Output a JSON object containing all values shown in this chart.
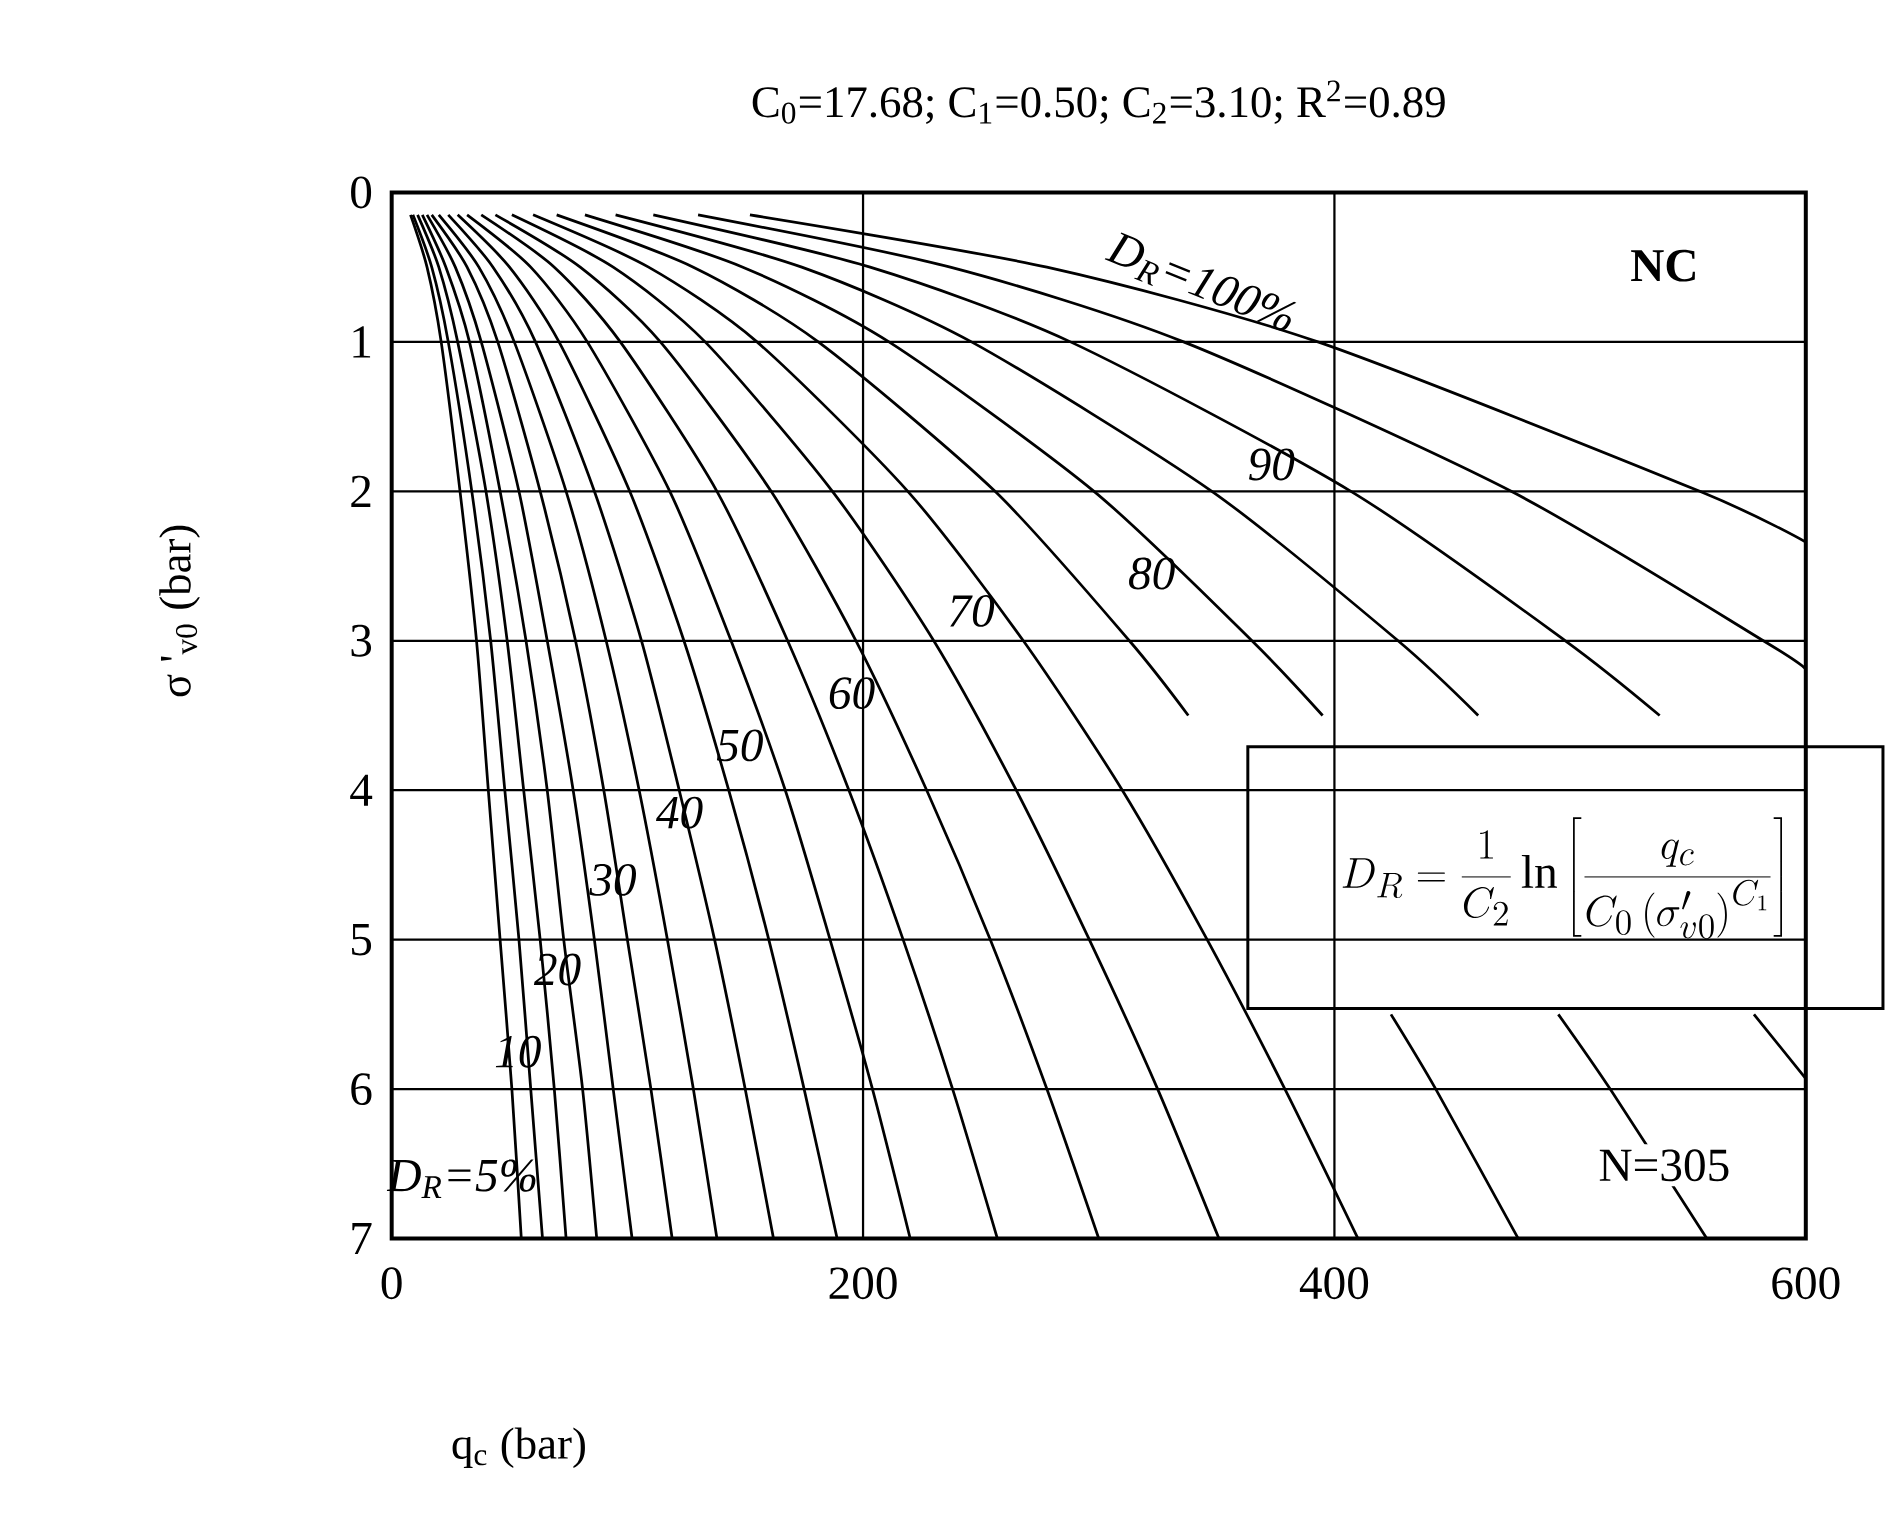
{
  "chart_data": {
    "type": "line",
    "title": "C$_{0}$=17.68;  C$_{1}$=0.50;  C$_{2}$=3.10;  R$^{2}$=0.89",
    "xlabel": "q$_{c}$ (bar)",
    "ylabel": "σ '$_{v0}$ (bar)",
    "xlim": [
      0,
      600
    ],
    "ylim": [
      7,
      0
    ],
    "xticks": [
      0,
      200,
      400,
      600
    ],
    "yticks": [
      0,
      1,
      2,
      3,
      4,
      5,
      6,
      7
    ],
    "grid": true,
    "marker": "none",
    "annotations": [
      "NC",
      "N=305",
      "D_{R} = \\frac{1}{C_{2}}\\ln\\left[\\frac{q_{c}}{C_{0}\\left(\\sigma'_{v0}\\right)^{C_{1}}}\\right]"
    ],
    "series": [
      {
        "name": "D$_{R}$=5%",
        "color": "#000000",
        "x": [
          8,
          15,
          21,
          29,
          36,
          41,
          46,
          51,
          55
        ],
        "values": [
          0.15,
          0.5,
          1,
          2,
          3,
          4,
          5,
          6,
          7
        ]
      },
      {
        "name": "10",
        "color": "#000000",
        "x": [
          9,
          17,
          24,
          34,
          42,
          48,
          54,
          59,
          64
        ],
        "values": [
          0.15,
          0.5,
          1,
          2,
          3,
          4,
          5,
          6,
          7
        ]
      },
      {
        "color": "#000000",
        "x": [
          11,
          20,
          28,
          40,
          49,
          56,
          63,
          69,
          74
        ],
        "values": [
          0.15,
          0.5,
          1,
          2,
          3,
          4,
          5,
          6,
          7
        ]
      },
      {
        "name": "20",
        "color": "#000000",
        "x": [
          13,
          23,
          33,
          46,
          57,
          66,
          73,
          81,
          87
        ],
        "values": [
          0.15,
          0.5,
          1,
          2,
          3,
          4,
          5,
          6,
          7
        ]
      },
      {
        "color": "#000000",
        "x": [
          15,
          27,
          38,
          54,
          66,
          77,
          86,
          94,
          102
        ],
        "values": [
          0.15,
          0.5,
          1,
          2,
          3,
          4,
          5,
          6,
          7
        ]
      },
      {
        "name": "30",
        "color": "#000000",
        "x": [
          17,
          32,
          45,
          63,
          78,
          90,
          100,
          110,
          119
        ],
        "values": [
          0.15,
          0.5,
          1,
          2,
          3,
          4,
          5,
          6,
          7
        ]
      },
      {
        "color": "#000000",
        "x": [
          20,
          37,
          52,
          74,
          91,
          105,
          117,
          128,
          138
        ],
        "values": [
          0.15,
          0.5,
          1,
          2,
          3,
          4,
          5,
          6,
          7
        ]
      },
      {
        "name": "40",
        "color": "#000000",
        "x": [
          24,
          43,
          61,
          86,
          106,
          122,
          137,
          150,
          162
        ],
        "values": [
          0.15,
          0.5,
          1,
          2,
          3,
          4,
          5,
          6,
          7
        ]
      },
      {
        "color": "#000000",
        "x": [
          28,
          50,
          71,
          101,
          124,
          143,
          160,
          175,
          189
        ],
        "values": [
          0.15,
          0.5,
          1,
          2,
          3,
          4,
          5,
          6,
          7
        ]
      },
      {
        "name": "50",
        "color": "#000000",
        "x": [
          32,
          59,
          83,
          118,
          144,
          167,
          186,
          204,
          220
        ],
        "values": [
          0.15,
          0.5,
          1,
          2,
          3,
          4,
          5,
          6,
          7
        ]
      },
      {
        "color": "#000000",
        "x": [
          38,
          69,
          97,
          138,
          168,
          194,
          217,
          238,
          257
        ],
        "values": [
          0.15,
          0.5,
          1,
          2,
          3,
          4,
          5,
          6,
          7
        ]
      },
      {
        "name": "60",
        "color": "#000000",
        "x": [
          44,
          80,
          114,
          161,
          197,
          227,
          254,
          278,
          300
        ],
        "values": [
          0.15,
          0.5,
          1,
          2,
          3,
          4,
          5,
          6,
          7
        ]
      },
      {
        "color": "#000000",
        "x": [
          51,
          94,
          133,
          187,
          230,
          265,
          296,
          325,
          351
        ],
        "values": [
          0.15,
          0.5,
          1,
          2,
          3,
          4,
          5,
          6,
          7
        ]
      },
      {
        "name": "70",
        "color": "#000000",
        "x": [
          60,
          109,
          155,
          219,
          268,
          310,
          346,
          379,
          410
        ],
        "values": [
          0.15,
          0.5,
          1,
          2,
          3,
          4,
          5,
          6,
          7
        ]
      },
      {
        "color": "#000000",
        "x": [
          70,
          128,
          181,
          256,
          313,
          338,
          361,
          404,
          424,
          443,
          478
        ],
        "values": [
          0.15,
          0.5,
          1,
          2,
          3,
          3.5,
          null,
          null,
          5.5,
          6,
          7
        ]
      },
      {
        "name": "80",
        "color": "#000000",
        "x": [
          82,
          149,
          211,
          298,
          365,
          395,
          422,
          472,
          495,
          517,
          558
        ],
        "values": [
          0.15,
          0.5,
          1,
          2,
          3,
          3.5,
          null,
          null,
          5.5,
          6,
          7
        ]
      },
      {
        "color": "#000000",
        "x": [
          95,
          174,
          246,
          348,
          427,
          461,
          493,
          551,
          578,
          600
        ],
        "values": [
          0.15,
          0.5,
          1,
          2,
          3,
          3.5,
          null,
          null,
          5.5,
          5.93
        ]
      },
      {
        "name": "90",
        "color": "#000000",
        "x": [
          111,
          203,
          288,
          407,
          498,
          538
        ],
        "values": [
          0.15,
          0.5,
          1,
          2,
          3,
          3.5
        ]
      },
      {
        "color": "#000000",
        "x": [
          130,
          237,
          336,
          475,
          582,
          600
        ],
        "values": [
          0.15,
          0.5,
          1,
          2,
          3,
          3.19
        ]
      },
      {
        "name": "D$_{R}$=100%",
        "color": "#000000",
        "x": [
          152,
          278,
          393,
          555,
          600
        ],
        "values": [
          0.15,
          0.5,
          1,
          2,
          2.34
        ]
      }
    ]
  }
}
